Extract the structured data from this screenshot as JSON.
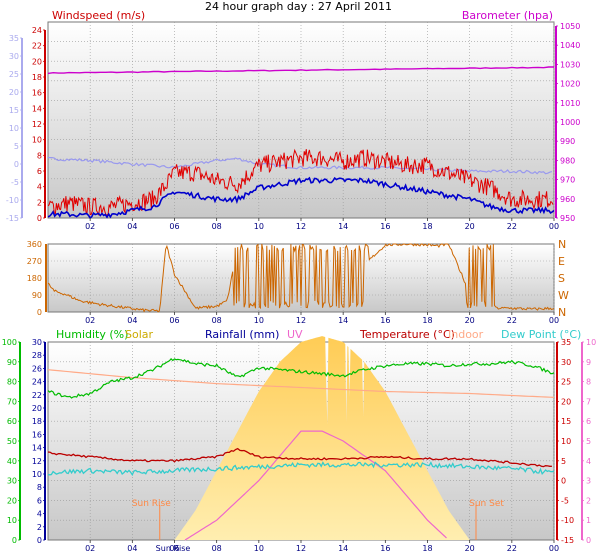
{
  "page_title": "24 hour graph day : 27 April 2011",
  "colors": {
    "wind": "#e00000",
    "gust": "#e00000",
    "wind_avg": "#0000cc",
    "wind_dir": "#cc6600",
    "barometer": "#cc00cc",
    "baro_low": "#9999ee",
    "humidity": "#00bb00",
    "solar": "#ffbb44",
    "rainfall": "#000099",
    "uv": "#ee66cc",
    "temperature": "#bb0000",
    "indoor": "#ffaa88",
    "dew_point": "#33cccc",
    "grid": "#999999",
    "sun_label": "#ff8844"
  },
  "chart_data": [
    {
      "type": "line",
      "name": "wind-barometer-panel",
      "labels": {
        "left": "Windspeed (m/s)",
        "right": "Barometer (hpa)"
      },
      "x_ticks": [
        "02",
        "04",
        "06",
        "08",
        "10",
        "12",
        "14",
        "16",
        "18",
        "20",
        "22",
        "00"
      ],
      "left_axis_outer": {
        "range": [
          -15,
          35
        ],
        "ticks": [
          "-15",
          "-10",
          "-5",
          "0",
          "5",
          "10",
          "15",
          "20",
          "25",
          "30",
          "35"
        ]
      },
      "left_axis_inner": {
        "range": [
          0,
          25
        ],
        "ticks": [
          "0",
          "2",
          "4",
          "6",
          "8",
          "10",
          "12",
          "14",
          "16",
          "18",
          "20",
          "22",
          "24"
        ]
      },
      "right_axis": {
        "range": [
          950,
          1050
        ],
        "ticks": [
          "950",
          "960",
          "970",
          "980",
          "990",
          "1000",
          "1010",
          "1020",
          "1030",
          "1040",
          "1050"
        ]
      },
      "series": {
        "gust": {
          "x": [
            0,
            1,
            2,
            3,
            4,
            5,
            5.5,
            6,
            7,
            8,
            9,
            10,
            11,
            12,
            13,
            14,
            15,
            16,
            17,
            18,
            19,
            20,
            21,
            22,
            23,
            24
          ],
          "y": [
            1.5,
            2,
            1.5,
            1.5,
            2,
            2.5,
            4,
            6,
            6,
            5,
            4.5,
            7,
            7.5,
            8,
            8,
            7.5,
            8,
            7.5,
            7,
            7,
            6,
            5,
            4,
            2.5,
            2.5,
            2.5
          ]
        },
        "avg": {
          "x": [
            0,
            1,
            2,
            3,
            4,
            5,
            5.5,
            6,
            7,
            8,
            9,
            10,
            11,
            12,
            13,
            14,
            15,
            16,
            17,
            18,
            19,
            20,
            21,
            22,
            23,
            24
          ],
          "y": [
            0.5,
            0.5,
            0.3,
            0.5,
            1,
            1.5,
            2.5,
            3.5,
            3,
            2.5,
            2.5,
            4,
            4.5,
            5,
            5,
            5,
            5,
            4.5,
            4,
            3.5,
            3,
            2.5,
            1.5,
            1,
            1,
            1
          ]
        },
        "barometer": {
          "x": [
            0,
            4,
            8,
            12,
            16,
            20,
            24
          ],
          "y": [
            1025.5,
            1026,
            1026.5,
            1027,
            1027.5,
            1028,
            1028.5
          ]
        },
        "pressure_low": {
          "x": [
            0,
            2,
            4,
            6,
            8,
            9,
            10,
            12,
            14,
            16,
            18,
            20,
            22,
            24
          ],
          "y": [
            1.5,
            1,
            0,
            -1,
            1,
            1.5,
            0,
            -1,
            -1,
            -1,
            -1.5,
            -2,
            -2,
            -2.5
          ]
        }
      }
    },
    {
      "type": "scatter",
      "name": "wind-direction-panel",
      "y_ticks": [
        "0",
        "90",
        "180",
        "270",
        "360"
      ],
      "right_labels": [
        "N",
        "W",
        "S",
        "E",
        "N"
      ],
      "x_ticks": [
        "02",
        "04",
        "06",
        "08",
        "10",
        "12",
        "14",
        "16",
        "18",
        "20",
        "22",
        "00"
      ],
      "series": {
        "direction": {
          "x": [
            0,
            0.3,
            0.8,
            1.5,
            2.5,
            3.5,
            4.5,
            5.3,
            5.6,
            6,
            7,
            8,
            8.5,
            9,
            10,
            11,
            12,
            13,
            14,
            15,
            16,
            17,
            18,
            18.5,
            19,
            20,
            21,
            22,
            23,
            24
          ],
          "y": [
            150,
            110,
            95,
            60,
            40,
            25,
            10,
            5,
            360,
            200,
            20,
            30,
            60,
            350,
            300,
            260,
            340,
            200,
            330,
            250,
            355,
            360,
            355,
            350,
            360,
            100,
            20,
            20,
            15,
            20
          ]
        }
      }
    },
    {
      "type": "line",
      "name": "weather-panel",
      "legend": [
        "Humidity (%)",
        "Solar",
        "Rainfall (mm)",
        "UV",
        "Temperature (°C)",
        "Indoor",
        "Dew Point (°C)"
      ],
      "x_ticks": [
        "02",
        "04",
        "Sun Rise",
        "06",
        "08",
        "10",
        "12",
        "14",
        "16",
        "18",
        "20",
        "22",
        "00"
      ],
      "annotations": [
        "Sun Rise",
        "Sun Set"
      ],
      "humidity_axis": {
        "range": [
          0,
          100
        ],
        "ticks": [
          "0",
          "10",
          "20",
          "30",
          "40",
          "50",
          "60",
          "70",
          "80",
          "90",
          "100"
        ]
      },
      "rain_axis": {
        "range": [
          0,
          30
        ],
        "ticks": [
          "0",
          "2",
          "4",
          "6",
          "8",
          "10",
          "12",
          "14",
          "16",
          "18",
          "20",
          "22",
          "24",
          "26",
          "28",
          "30"
        ]
      },
      "temp_axis": {
        "range": [
          -15,
          35
        ],
        "ticks": [
          "-15",
          "-10",
          "-5",
          "0",
          "5",
          "10",
          "15",
          "20",
          "25",
          "30",
          "35"
        ]
      },
      "uv_axis": {
        "range": [
          0,
          10
        ],
        "ticks": [
          "0",
          "1",
          "2",
          "3",
          "4",
          "5",
          "6",
          "7",
          "8",
          "9",
          "10"
        ]
      },
      "series": {
        "humidity": {
          "x": [
            0,
            1,
            2,
            3,
            4,
            5,
            6,
            7,
            8,
            9,
            10,
            11,
            12,
            13,
            14,
            15,
            16,
            17,
            18,
            19,
            20,
            21,
            22,
            23,
            24
          ],
          "y": [
            75,
            72,
            74,
            80,
            82,
            86,
            92,
            89,
            88,
            82,
            87,
            86,
            85,
            84,
            83,
            86,
            88,
            89,
            89,
            88,
            89,
            89,
            90,
            88,
            84
          ]
        },
        "indoor": {
          "x": [
            0,
            4,
            8,
            12,
            16,
            20,
            24
          ],
          "y": [
            28,
            26,
            24.5,
            23.5,
            22.5,
            22,
            21
          ]
        },
        "temperature": {
          "x": [
            0,
            2,
            4,
            6,
            8,
            9,
            10,
            12,
            14,
            16,
            18,
            20,
            22,
            24
          ],
          "y": [
            7,
            6,
            5,
            5,
            6,
            8,
            6,
            5.5,
            5.5,
            6,
            5.5,
            5.5,
            4.5,
            3.5
          ]
        },
        "dew_point": {
          "x": [
            0,
            2,
            4,
            6,
            8,
            10,
            12,
            14,
            16,
            18,
            20,
            22,
            24
          ],
          "y": [
            2,
            2.5,
            2,
            2.5,
            3,
            3.5,
            4,
            4,
            4,
            4,
            3.5,
            3,
            2
          ]
        },
        "solar": {
          "x": [
            6,
            7,
            8,
            9,
            10,
            11,
            12,
            13,
            14,
            15,
            16,
            17,
            18,
            19,
            20
          ],
          "y": [
            0,
            1.5,
            3.5,
            5.5,
            7.5,
            9,
            10,
            10.3,
            10,
            9,
            7.5,
            5.5,
            3.5,
            1.5,
            0
          ]
        },
        "uv": {
          "x": [
            6.5,
            8,
            10,
            12,
            13,
            14,
            16,
            18,
            19
          ],
          "y": [
            0,
            1,
            3,
            5.5,
            5.5,
            5,
            3.5,
            1,
            0
          ]
        }
      }
    }
  ]
}
